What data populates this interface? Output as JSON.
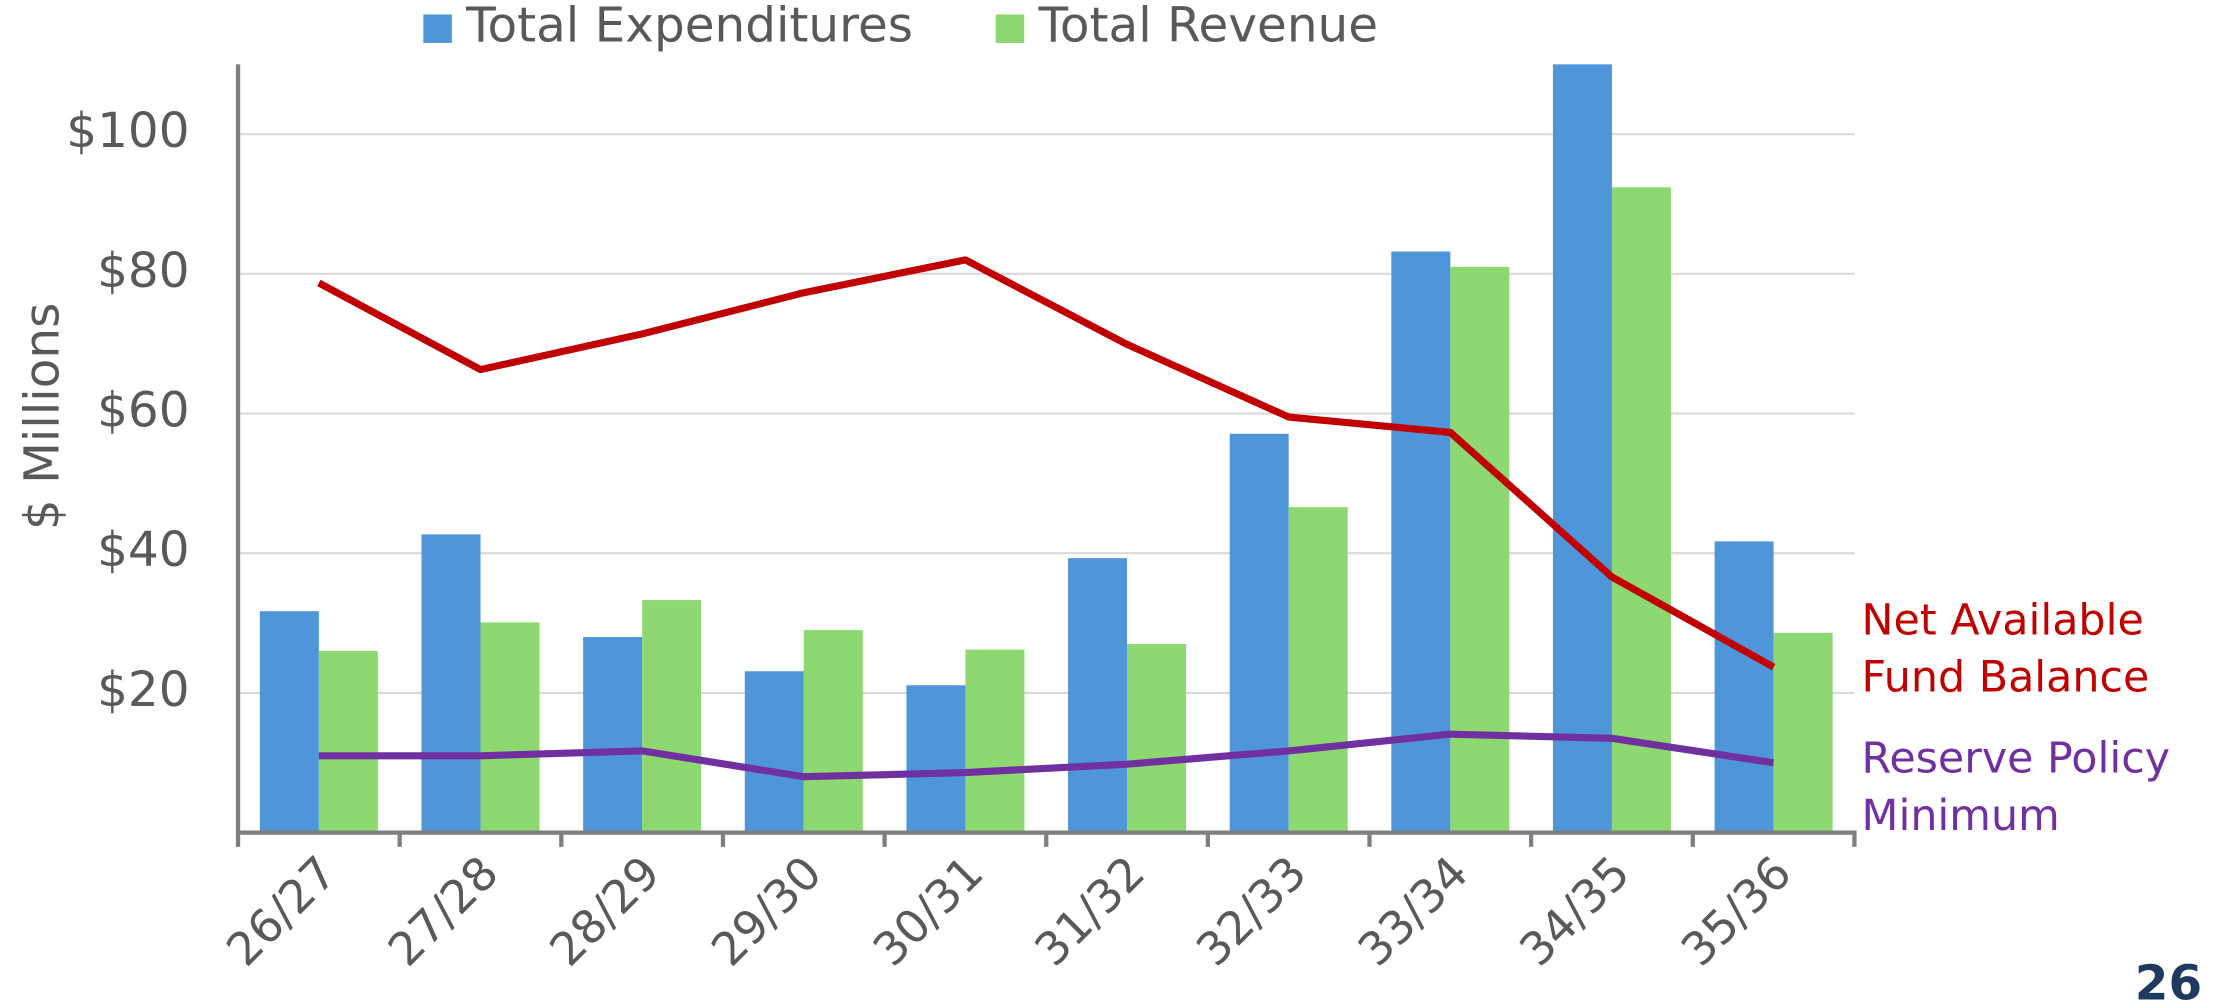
{
  "chart_data": {
    "type": "bar",
    "y_label": "$ Millions",
    "categories": [
      "26/27",
      "27/28",
      "28/29",
      "29/30",
      "30/31",
      "31/32",
      "32/33",
      "33/34",
      "34/35",
      "35/36"
    ],
    "series": [
      {
        "name": "Total Expenditures",
        "color": "#4e96d9",
        "values": [
          31.7,
          42.7,
          28.0,
          23.1,
          21.1,
          39.3,
          57.1,
          83.2,
          110,
          41.7
        ]
      },
      {
        "name": "Total Revenue",
        "color": "#8ed872",
        "values": [
          26.0,
          30.1,
          33.3,
          29.0,
          26.2,
          27.0,
          46.6,
          81.0,
          92.4,
          28.6
        ]
      },
      {
        "name": "Net Available Fund Balance",
        "type": "line",
        "color": "#c00000",
        "values": [
          78.7,
          66.3,
          71.4,
          77.3,
          82.0,
          69.9,
          59.5,
          57.3,
          36.6,
          23.7
        ]
      },
      {
        "name": "Reserve Policy Minimum",
        "type": "line",
        "color": "#7030a0",
        "values": [
          11.0,
          11.0,
          11.7,
          8.0,
          8.6,
          9.8,
          11.7,
          14.1,
          13.5,
          10.0
        ]
      }
    ],
    "ylim": [
      0,
      110
    ],
    "yticks": [
      {
        "value": 20,
        "label": "$20"
      },
      {
        "value": 40,
        "label": "$40"
      },
      {
        "value": 60,
        "label": "$60"
      },
      {
        "value": 80,
        "label": "$80"
      },
      {
        "value": 100,
        "label": "$100"
      }
    ],
    "grid": true,
    "legend": "top"
  },
  "page_number": "26"
}
